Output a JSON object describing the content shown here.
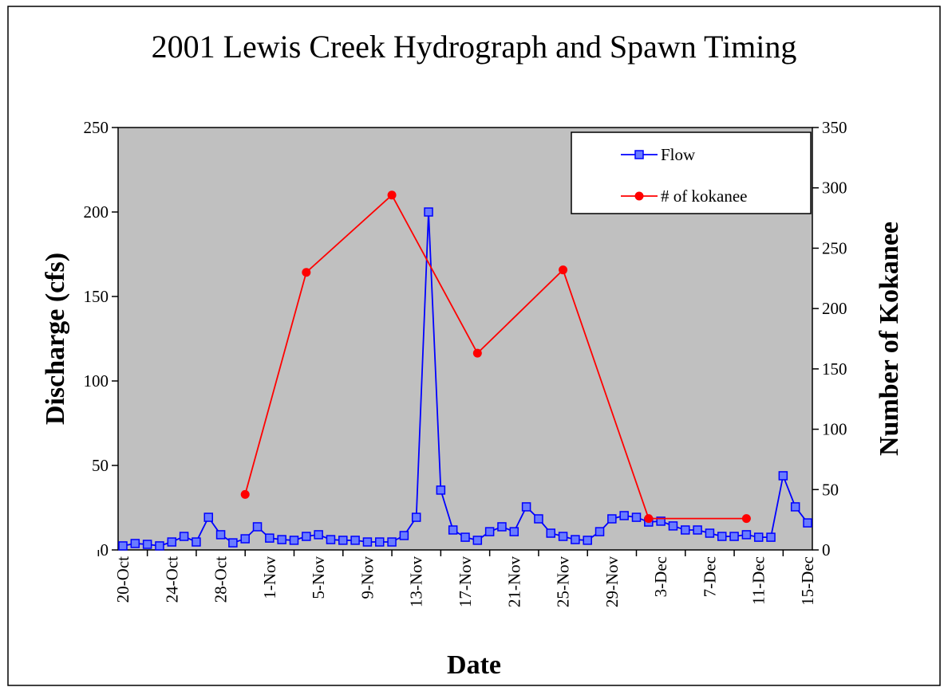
{
  "chart_data": {
    "type": "line",
    "title": "2001 Lewis Creek Hydrograph and Spawn Timing",
    "x_label": "Date",
    "y_label": "Discharge (cfs)",
    "y2_label": "Number of Kokanee",
    "categories": [
      "20-Oct",
      null,
      null,
      null,
      "24-Oct",
      null,
      null,
      null,
      "28-Oct",
      null,
      null,
      null,
      "1-Nov",
      null,
      null,
      null,
      "5-Nov",
      null,
      null,
      null,
      "9-Nov",
      null,
      null,
      null,
      "13-Nov",
      null,
      null,
      null,
      "17-Nov",
      null,
      null,
      null,
      "21-Nov",
      null,
      null,
      null,
      "25-Nov",
      null,
      null,
      null,
      "29-Nov",
      null,
      null,
      null,
      "3-Dec",
      null,
      null,
      null,
      "7-Dec",
      null,
      null,
      null,
      "11-Dec",
      null,
      null,
      null,
      "15-Dec"
    ],
    "series": [
      {
        "name": "Flow",
        "color": "#0000ff",
        "marker": "square",
        "axis": "y",
        "values": [
          2.4,
          3.8,
          3.3,
          2.4,
          4.7,
          8,
          4.7,
          19.3,
          9,
          4.2,
          6.6,
          13.7,
          7,
          6.1,
          5.7,
          8,
          9,
          6.1,
          5.7,
          5.7,
          4.7,
          4.7,
          4.7,
          8.5,
          19.3,
          200,
          35.4,
          11.8,
          7.5,
          5.7,
          10.8,
          13.7,
          10.8,
          25.5,
          18.4,
          9.9,
          8,
          6.1,
          5.7,
          10.8,
          18.4,
          20.3,
          19.3,
          16.5,
          17,
          14.2,
          11.8,
          11.8,
          9.9,
          8,
          8,
          9,
          7.5,
          7.5,
          43.9,
          25.5,
          16
        ]
      },
      {
        "name": "# of kokanee",
        "color": "#ff0000",
        "marker": "circle",
        "axis": "y2",
        "connect_gaps": true,
        "values": [
          null,
          null,
          null,
          null,
          null,
          null,
          null,
          null,
          null,
          null,
          46,
          null,
          null,
          null,
          null,
          230,
          null,
          null,
          null,
          null,
          null,
          null,
          294,
          null,
          null,
          null,
          null,
          null,
          null,
          163,
          null,
          null,
          null,
          null,
          null,
          null,
          232,
          null,
          null,
          null,
          null,
          null,
          null,
          26,
          null,
          null,
          null,
          null,
          null,
          null,
          null,
          26,
          null,
          null,
          null,
          null,
          null
        ]
      }
    ],
    "ylim": [
      0,
      250
    ],
    "yticks": [
      0,
      50,
      100,
      150,
      200,
      250
    ],
    "y2lim": [
      0,
      350
    ],
    "y2ticks": [
      0,
      50,
      100,
      150,
      200,
      250,
      300,
      350
    ],
    "plot_background": "#c0c0c0",
    "legend": "top-right"
  }
}
